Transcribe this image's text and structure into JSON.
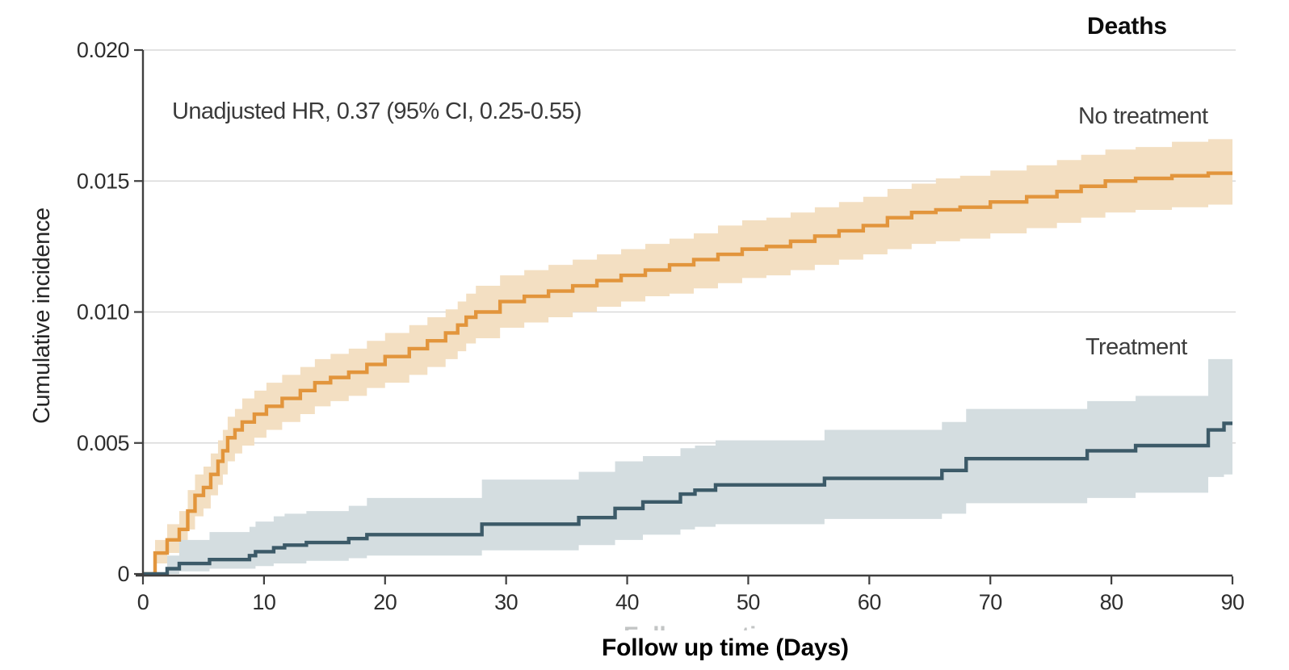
{
  "chart_data": {
    "type": "line",
    "subtype": "cumulative-incidence-step-curves-with-95ci-bands",
    "title": "Deaths",
    "annotation": "Unadjusted HR, 0.37 (95% CI, 0.25-0.55)",
    "xlabel": "Follow up time (Days)",
    "ylabel": "Cumulative incidence",
    "xlim": [
      0,
      90
    ],
    "ylim": [
      0,
      0.02
    ],
    "grid": "horizontal",
    "legend_position": "labels-inline-right",
    "xticks": [
      [
        0,
        "0"
      ],
      [
        10,
        "10"
      ],
      [
        20,
        "20"
      ],
      [
        30,
        "30"
      ],
      [
        40,
        "40"
      ],
      [
        50,
        "50"
      ],
      [
        60,
        "60"
      ],
      [
        70,
        "70"
      ],
      [
        80,
        "80"
      ],
      [
        90,
        "90"
      ]
    ],
    "yticks": [
      [
        0,
        "0"
      ],
      [
        0.005,
        "0.005"
      ],
      [
        0.01,
        "0.010"
      ],
      [
        0.015,
        "0.015"
      ],
      [
        0.02,
        "0.020"
      ]
    ],
    "colors": {
      "no_treatment_line": "#E2953C",
      "no_treatment_band": "#F3DFC2",
      "treatment_line": "#3C5A68",
      "treatment_band": "#D4DDE0",
      "gridline": "#d9d9d9",
      "axis": "#3f3f3f",
      "tick_text": "#2e2e2e"
    },
    "series": [
      {
        "key": "no-treatment",
        "name": "No treatment",
        "color": "#E2953C",
        "band_color": "#F3DFC2",
        "point_format": [
          "day",
          "cumulative_incidence",
          "ci_lower",
          "ci_upper"
        ],
        "points": [
          [
            0,
            0,
            0,
            0
          ],
          [
            1,
            0.0008,
            0.0004,
            0.0013
          ],
          [
            2,
            0.0013,
            0.0008,
            0.0019
          ],
          [
            3,
            0.0017,
            0.0011,
            0.0024
          ],
          [
            3.7,
            0.0024,
            0.0017,
            0.0032
          ],
          [
            4.3,
            0.003,
            0.0022,
            0.0038
          ],
          [
            5,
            0.0033,
            0.0025,
            0.0041
          ],
          [
            5.6,
            0.0038,
            0.003,
            0.0046
          ],
          [
            6.2,
            0.0043,
            0.0034,
            0.0051
          ],
          [
            6.6,
            0.0047,
            0.0038,
            0.0055
          ],
          [
            7,
            0.0052,
            0.0043,
            0.006
          ],
          [
            7.6,
            0.0055,
            0.0046,
            0.0063
          ],
          [
            8.2,
            0.0058,
            0.0049,
            0.0067
          ],
          [
            9.2,
            0.0061,
            0.0052,
            0.007
          ],
          [
            10.2,
            0.0064,
            0.0055,
            0.0073
          ],
          [
            11.5,
            0.0067,
            0.0058,
            0.0076
          ],
          [
            13,
            0.007,
            0.0061,
            0.0079
          ],
          [
            14.2,
            0.0073,
            0.0064,
            0.0082
          ],
          [
            15.5,
            0.0075,
            0.0066,
            0.0084
          ],
          [
            17,
            0.0077,
            0.0068,
            0.0086
          ],
          [
            18.5,
            0.008,
            0.0071,
            0.0089
          ],
          [
            20,
            0.0083,
            0.0073,
            0.0092
          ],
          [
            22,
            0.0086,
            0.0076,
            0.0095
          ],
          [
            23.5,
            0.0089,
            0.0079,
            0.0098
          ],
          [
            25,
            0.0092,
            0.0082,
            0.0101
          ],
          [
            26,
            0.0095,
            0.0085,
            0.0104
          ],
          [
            26.7,
            0.0098,
            0.0088,
            0.0107
          ],
          [
            27.5,
            0.01,
            0.009,
            0.011
          ],
          [
            29.5,
            0.0104,
            0.0094,
            0.0114
          ],
          [
            31.5,
            0.0106,
            0.0096,
            0.0116
          ],
          [
            33.5,
            0.0108,
            0.0098,
            0.0118
          ],
          [
            35.5,
            0.011,
            0.01,
            0.012
          ],
          [
            37.5,
            0.0112,
            0.0102,
            0.0122
          ],
          [
            39.5,
            0.0114,
            0.0104,
            0.0124
          ],
          [
            41.5,
            0.0116,
            0.0106,
            0.0126
          ],
          [
            43.5,
            0.0118,
            0.0107,
            0.0128
          ],
          [
            45.5,
            0.012,
            0.0109,
            0.013
          ],
          [
            47.5,
            0.0122,
            0.0111,
            0.0133
          ],
          [
            49.5,
            0.0124,
            0.0113,
            0.0135
          ],
          [
            51.5,
            0.0125,
            0.0114,
            0.0136
          ],
          [
            53.5,
            0.0127,
            0.0116,
            0.0138
          ],
          [
            55.5,
            0.0129,
            0.0118,
            0.014
          ],
          [
            57.5,
            0.0131,
            0.012,
            0.0142
          ],
          [
            59.5,
            0.0133,
            0.0122,
            0.0144
          ],
          [
            61.5,
            0.0136,
            0.0124,
            0.0147
          ],
          [
            63.5,
            0.0138,
            0.0126,
            0.0149
          ],
          [
            65.5,
            0.0139,
            0.0127,
            0.0151
          ],
          [
            67.5,
            0.014,
            0.0128,
            0.0152
          ],
          [
            70,
            0.0142,
            0.013,
            0.0154
          ],
          [
            73,
            0.0144,
            0.0132,
            0.0156
          ],
          [
            75.5,
            0.0146,
            0.0134,
            0.0158
          ],
          [
            77.5,
            0.0148,
            0.0136,
            0.016
          ],
          [
            79.5,
            0.015,
            0.0138,
            0.0162
          ],
          [
            82,
            0.0151,
            0.0139,
            0.0163
          ],
          [
            85,
            0.0152,
            0.014,
            0.0165
          ],
          [
            88,
            0.0153,
            0.0141,
            0.0166
          ],
          [
            90,
            0.0153,
            0.0142,
            0.0166
          ]
        ]
      },
      {
        "key": "treatment",
        "name": "Treatment",
        "color": "#3C5A68",
        "band_color": "#D4DDE0",
        "point_format": [
          "day",
          "cumulative_incidence",
          "ci_lower",
          "ci_upper"
        ],
        "points": [
          [
            0,
            0,
            0,
            0
          ],
          [
            2,
            0.0002,
            0.0,
            0.0007
          ],
          [
            3,
            0.0004,
            0.0001,
            0.0013
          ],
          [
            5.5,
            0.00055,
            0.0002,
            0.0016
          ],
          [
            8.8,
            0.0007,
            0.0002,
            0.0018
          ],
          [
            9.3,
            0.00085,
            0.0003,
            0.002
          ],
          [
            10.8,
            0.001,
            0.0004,
            0.0022
          ],
          [
            11.7,
            0.0011,
            0.0004,
            0.0023
          ],
          [
            13.5,
            0.0012,
            0.0005,
            0.0024
          ],
          [
            17,
            0.00135,
            0.0006,
            0.0026
          ],
          [
            18.5,
            0.0015,
            0.0007,
            0.0029
          ],
          [
            28,
            0.0019,
            0.0009,
            0.0036
          ],
          [
            36,
            0.00215,
            0.0011,
            0.0039
          ],
          [
            39,
            0.0025,
            0.0013,
            0.0043
          ],
          [
            41.3,
            0.00275,
            0.0015,
            0.0045
          ],
          [
            44.4,
            0.00305,
            0.0017,
            0.0048
          ],
          [
            45.6,
            0.0032,
            0.0018,
            0.0049
          ],
          [
            47.3,
            0.0034,
            0.0019,
            0.0051
          ],
          [
            56.3,
            0.00365,
            0.0021,
            0.0055
          ],
          [
            66,
            0.00395,
            0.0023,
            0.0058
          ],
          [
            68,
            0.0044,
            0.0027,
            0.0063
          ],
          [
            78,
            0.0047,
            0.0029,
            0.0066
          ],
          [
            82,
            0.0049,
            0.0031,
            0.0068
          ],
          [
            88,
            0.0055,
            0.0037,
            0.0082
          ],
          [
            89.3,
            0.00575,
            0.0038,
            0.0082
          ]
        ]
      }
    ]
  }
}
